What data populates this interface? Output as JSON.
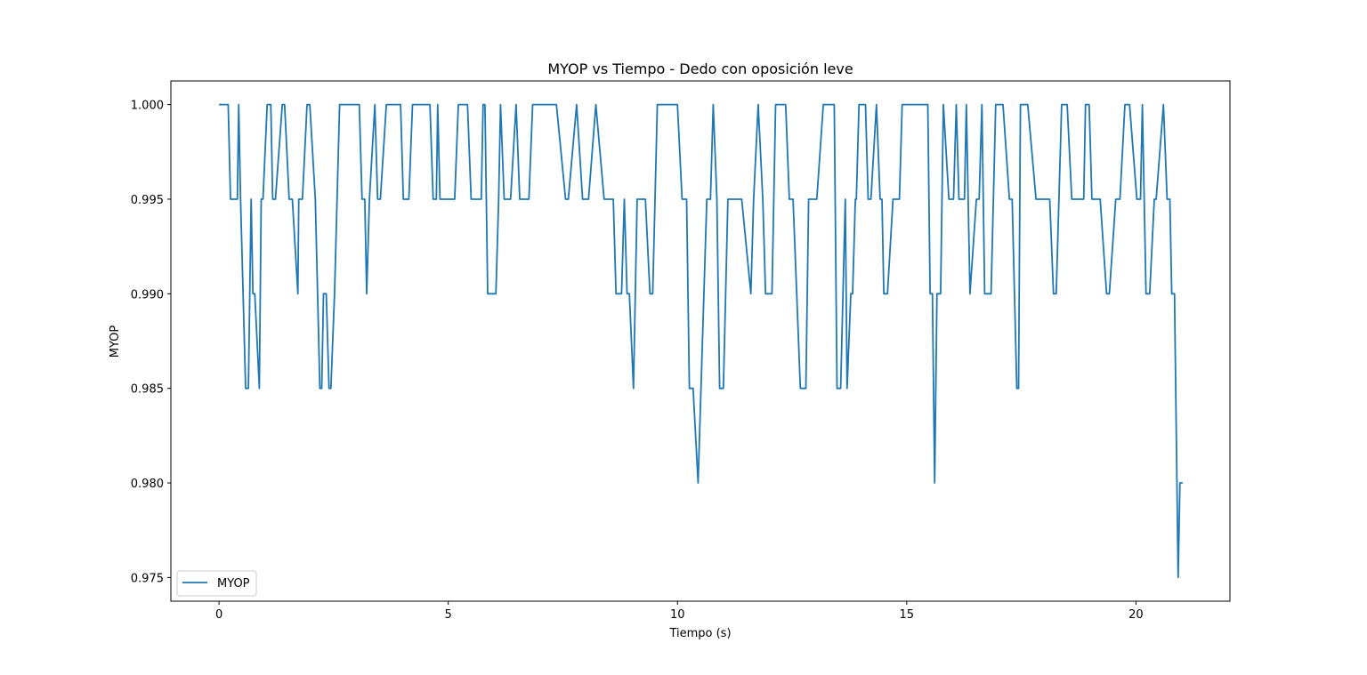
{
  "chart_data": {
    "type": "line",
    "title": "MYOP vs Tiempo - Dedo con oposición leve",
    "xlabel": "Tiempo (s)",
    "ylabel": "MYOP",
    "xlim": [
      -1.05,
      22.05
    ],
    "ylim": [
      0.97375,
      1.00125
    ],
    "xticks": [
      0,
      5,
      10,
      15,
      20
    ],
    "xtick_labels": [
      "0",
      "5",
      "10",
      "15",
      "20"
    ],
    "yticks": [
      0.975,
      0.98,
      0.985,
      0.99,
      0.995,
      1.0
    ],
    "ytick_labels": [
      "0.975",
      "0.980",
      "0.985",
      "0.990",
      "0.995",
      "1.000"
    ],
    "grid": false,
    "legend": {
      "location": "lower left",
      "entries": [
        "MYOP"
      ]
    },
    "series": [
      {
        "name": "MYOP",
        "color": "#1f77b4",
        "x": [
          0.0,
          0.2,
          0.25,
          0.4,
          0.43,
          0.47,
          0.58,
          0.64,
          0.7,
          0.74,
          0.78,
          0.88,
          0.92,
          0.96,
          1.05,
          1.13,
          1.17,
          1.23,
          1.38,
          1.43,
          1.53,
          1.6,
          1.72,
          1.74,
          1.82,
          1.92,
          1.98,
          2.1,
          2.2,
          2.24,
          2.28,
          2.34,
          2.4,
          2.44,
          2.52,
          2.63,
          2.73,
          3.06,
          3.12,
          3.18,
          3.22,
          3.28,
          3.4,
          3.46,
          3.52,
          3.65,
          3.72,
          3.96,
          4.02,
          4.14,
          4.22,
          4.28,
          4.6,
          4.67,
          4.74,
          4.77,
          4.82,
          5.0,
          5.06,
          5.14,
          5.22,
          5.42,
          5.5,
          5.72,
          5.76,
          5.8,
          5.86,
          6.04,
          6.1,
          6.14,
          6.22,
          6.36,
          6.48,
          6.56,
          6.76,
          6.84,
          7.36,
          7.56,
          7.62,
          7.8,
          7.93,
          8.06,
          8.22,
          8.4,
          8.6,
          8.66,
          8.78,
          8.84,
          8.9,
          8.95,
          9.04,
          9.12,
          9.3,
          9.4,
          9.46,
          9.56,
          9.68,
          10.0,
          10.1,
          10.2,
          10.26,
          10.34,
          10.45,
          10.64,
          10.72,
          10.78,
          10.86,
          10.92,
          11.0,
          11.1,
          11.4,
          11.6,
          11.66,
          11.76,
          11.86,
          11.92,
          12.06,
          12.14,
          12.36,
          12.44,
          12.52,
          12.68,
          12.8,
          12.86,
          13.04,
          13.18,
          13.42,
          13.48,
          13.56,
          13.66,
          13.7,
          13.78,
          13.82,
          13.88,
          13.9,
          13.96,
          14.1,
          14.16,
          14.22,
          14.34,
          14.42,
          14.46,
          14.5,
          14.58,
          14.7,
          14.84,
          14.9,
          15.06,
          15.46,
          15.51,
          15.56,
          15.61,
          15.66,
          15.74,
          15.8,
          15.92,
          16.02,
          16.08,
          16.14,
          16.26,
          16.3,
          16.38,
          16.52,
          16.58,
          16.64,
          16.7,
          16.84,
          16.94,
          17.1,
          17.24,
          17.3,
          17.4,
          17.44,
          17.48,
          17.64,
          17.82,
          18.06,
          18.12,
          18.2,
          18.26,
          18.38,
          18.5,
          18.6,
          18.86,
          18.9,
          18.98,
          19.04,
          19.22,
          19.36,
          19.42,
          19.56,
          19.65,
          19.76,
          19.86,
          20.02,
          20.1,
          20.14,
          20.22,
          20.3,
          20.4,
          20.44,
          20.6,
          20.68,
          20.74,
          20.78,
          20.84,
          20.92,
          20.96,
          21.02
        ],
        "values": [
          1.0,
          1.0,
          0.995,
          0.995,
          1.0,
          0.995,
          0.985,
          0.985,
          0.995,
          0.99,
          0.99,
          0.985,
          0.995,
          0.995,
          1.0,
          1.0,
          0.995,
          0.995,
          1.0,
          1.0,
          0.995,
          0.995,
          0.99,
          0.995,
          0.995,
          1.0,
          1.0,
          0.995,
          0.985,
          0.985,
          0.99,
          0.99,
          0.985,
          0.985,
          0.99,
          1.0,
          1.0,
          1.0,
          0.995,
          0.995,
          0.99,
          0.995,
          1.0,
          0.995,
          0.995,
          1.0,
          1.0,
          1.0,
          0.995,
          0.995,
          1.0,
          1.0,
          1.0,
          0.995,
          0.995,
          1.0,
          0.995,
          0.995,
          0.995,
          0.995,
          1.0,
          1.0,
          0.995,
          0.995,
          1.0,
          1.0,
          0.99,
          0.99,
          0.995,
          1.0,
          0.995,
          0.995,
          1.0,
          0.995,
          0.995,
          1.0,
          1.0,
          0.995,
          0.995,
          1.0,
          0.995,
          0.995,
          1.0,
          0.995,
          0.995,
          0.99,
          0.99,
          0.995,
          0.99,
          0.99,
          0.985,
          0.995,
          0.995,
          0.99,
          0.99,
          1.0,
          1.0,
          1.0,
          0.995,
          0.995,
          0.985,
          0.985,
          0.98,
          0.995,
          0.995,
          1.0,
          0.995,
          0.985,
          0.985,
          0.995,
          0.995,
          0.99,
          0.995,
          1.0,
          0.995,
          0.99,
          0.99,
          1.0,
          1.0,
          0.995,
          0.995,
          0.985,
          0.985,
          0.995,
          0.995,
          1.0,
          1.0,
          0.985,
          0.985,
          0.995,
          0.985,
          0.99,
          0.99,
          0.995,
          0.995,
          1.0,
          1.0,
          0.995,
          0.995,
          1.0,
          0.995,
          0.995,
          0.99,
          0.99,
          0.995,
          0.995,
          1.0,
          1.0,
          1.0,
          0.99,
          0.99,
          0.98,
          0.99,
          0.99,
          1.0,
          0.995,
          0.995,
          1.0,
          0.995,
          0.995,
          1.0,
          0.99,
          0.995,
          0.995,
          1.0,
          0.99,
          0.99,
          1.0,
          1.0,
          0.995,
          0.995,
          0.985,
          0.985,
          1.0,
          1.0,
          0.995,
          0.995,
          0.995,
          0.99,
          0.99,
          1.0,
          1.0,
          0.995,
          0.995,
          1.0,
          1.0,
          0.995,
          0.995,
          0.99,
          0.99,
          0.995,
          0.995,
          1.0,
          1.0,
          0.995,
          0.995,
          1.0,
          0.99,
          0.99,
          0.995,
          0.995,
          1.0,
          0.995,
          0.995,
          0.99,
          0.99,
          0.975,
          0.98,
          0.98
        ]
      }
    ]
  }
}
